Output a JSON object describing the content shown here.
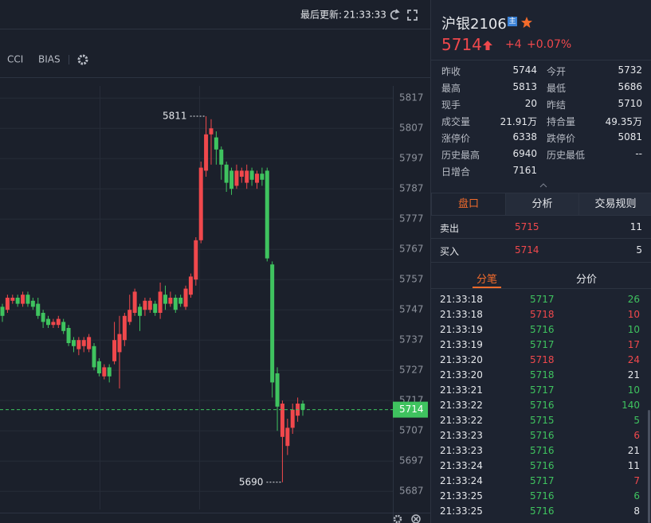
{
  "top_bar": {
    "update_label": "最后更新:",
    "update_time": "21:33:33"
  },
  "toolbar": {
    "indicators": [
      "CCI",
      "BIAS"
    ]
  },
  "chart_data": {
    "type": "candlestick",
    "open": [
      5748,
      5747,
      5750,
      5751,
      5749,
      5752,
      5750,
      5749,
      5746,
      5744,
      5742,
      5742,
      5743,
      5741,
      5737,
      5734,
      5735,
      5734,
      5735,
      5730,
      5725,
      5728,
      5730,
      5733,
      5737,
      5743,
      5746,
      5748,
      5747,
      5747,
      5749,
      5746,
      5752,
      5749,
      5751,
      5751,
      5748,
      5752,
      5757,
      5770,
      5793,
      5805,
      5804,
      5800,
      5795,
      5793,
      5788,
      5791,
      5789,
      5793,
      5789,
      5792,
      5793,
      5762,
      5726,
      5705,
      5702,
      5708,
      5712,
      5716
    ],
    "high": [
      5749,
      5752,
      5752,
      5752,
      5753,
      5753,
      5751,
      5751,
      5747,
      5745,
      5744,
      5745,
      5744,
      5742,
      5738,
      5738,
      5738,
      5739,
      5736,
      5731,
      5729,
      5729,
      5743,
      5745,
      5746,
      5752,
      5754,
      5749,
      5751,
      5751,
      5750,
      5756,
      5755,
      5753,
      5752,
      5752,
      5755,
      5759,
      5771,
      5796,
      5811,
      5810,
      5806,
      5801,
      5796,
      5794,
      5795,
      5794,
      5795,
      5794,
      5793,
      5794,
      5794,
      5763,
      5728,
      5717,
      5711,
      5716,
      5718,
      5717
    ],
    "low": [
      5743,
      5746,
      5749,
      5748,
      5748,
      5748,
      5747,
      5744,
      5741,
      5741,
      5741,
      5741,
      5739,
      5735,
      5733,
      5732,
      5733,
      5733,
      5727,
      5725,
      5724,
      5723,
      5729,
      5721,
      5735,
      5742,
      5745,
      5740,
      5745,
      5746,
      5745,
      5744,
      5747,
      5748,
      5746,
      5748,
      5747,
      5751,
      5755,
      5769,
      5791,
      5795,
      5795,
      5790,
      5786,
      5785,
      5787,
      5789,
      5787,
      5788,
      5787,
      5788,
      5763,
      5718,
      5707,
      5690,
      5699,
      5706,
      5710,
      5712
    ],
    "close": [
      5745,
      5751,
      5751,
      5749,
      5752,
      5749,
      5748,
      5745,
      5743,
      5742,
      5743,
      5744,
      5740,
      5736,
      5735,
      5737,
      5737,
      5738,
      5728,
      5726,
      5728,
      5725,
      5737,
      5739,
      5745,
      5747,
      5753,
      5745,
      5750,
      5750,
      5746,
      5753,
      5749,
      5751,
      5747,
      5749,
      5754,
      5758,
      5770,
      5794,
      5805,
      5807,
      5800,
      5795,
      5789,
      5787,
      5793,
      5793,
      5793,
      5790,
      5792,
      5790,
      5764,
      5723,
      5715,
      5716,
      5708,
      5714,
      5716,
      5714
    ],
    "up_color": "#f0484c",
    "down_color": "#3fc35f",
    "ylim": [
      5681,
      5821
    ],
    "yticks": [
      5817,
      5807,
      5797,
      5787,
      5777,
      5767,
      5757,
      5747,
      5737,
      5727,
      5717,
      5707,
      5697,
      5687
    ],
    "grid": true,
    "max_label": 5811,
    "min_label": 5690,
    "last_price": 5714
  },
  "quote": {
    "symbol": "沪银2106",
    "badge": "主",
    "price": 5714,
    "change": "+4",
    "change_pct": "+0.07%"
  },
  "stats": [
    [
      {
        "label": "昨收",
        "value": "5744"
      },
      {
        "label": "今开",
        "value": "5732"
      }
    ],
    [
      {
        "label": "最高",
        "value": "5813"
      },
      {
        "label": "最低",
        "value": "5686"
      }
    ],
    [
      {
        "label": "现手",
        "value": "20"
      },
      {
        "label": "昨结",
        "value": "5710"
      }
    ],
    [
      {
        "label": "成交量",
        "value": "21.91万"
      },
      {
        "label": "持合量",
        "value": "49.35万"
      }
    ],
    [
      {
        "label": "涨停价",
        "value": "6338"
      },
      {
        "label": "跌停价",
        "value": "5081"
      }
    ],
    [
      {
        "label": "历史最高",
        "value": "6940"
      },
      {
        "label": "历史最低",
        "value": "--"
      }
    ],
    [
      {
        "label": "日增合",
        "value": "7161"
      }
    ]
  ],
  "tabs": [
    "盘口",
    "分析",
    "交易规则"
  ],
  "order_book": [
    {
      "side": "卖出",
      "price": "5715",
      "volume": "11"
    },
    {
      "side": "买入",
      "price": "5714",
      "volume": "5"
    }
  ],
  "sub_tabs": [
    "分笔",
    "分价"
  ],
  "ticks": [
    {
      "time": "21:33:18",
      "price": "5717",
      "volume": "26",
      "price_color": "#3fc35f",
      "volume_color": "#3fc35f"
    },
    {
      "time": "21:33:18",
      "price": "5718",
      "volume": "10",
      "price_color": "#f0484c",
      "volume_color": "#f0484c"
    },
    {
      "time": "21:33:19",
      "price": "5716",
      "volume": "10",
      "price_color": "#3fc35f",
      "volume_color": "#3fc35f"
    },
    {
      "time": "21:33:19",
      "price": "5717",
      "volume": "17",
      "price_color": "#3fc35f",
      "volume_color": "#f0484c"
    },
    {
      "time": "21:33:20",
      "price": "5718",
      "volume": "24",
      "price_color": "#f0484c",
      "volume_color": "#f0484c"
    },
    {
      "time": "21:33:20",
      "price": "5718",
      "volume": "21",
      "price_color": "#3fc35f",
      "volume_color": "#e6e8ec"
    },
    {
      "time": "21:33:21",
      "price": "5717",
      "volume": "10",
      "price_color": "#3fc35f",
      "volume_color": "#3fc35f"
    },
    {
      "time": "21:33:22",
      "price": "5716",
      "volume": "140",
      "price_color": "#3fc35f",
      "volume_color": "#3fc35f"
    },
    {
      "time": "21:33:22",
      "price": "5715",
      "volume": "5",
      "price_color": "#3fc35f",
      "volume_color": "#3fc35f"
    },
    {
      "time": "21:33:23",
      "price": "5716",
      "volume": "6",
      "price_color": "#3fc35f",
      "volume_color": "#f0484c"
    },
    {
      "time": "21:33:23",
      "price": "5716",
      "volume": "21",
      "price_color": "#3fc35f",
      "volume_color": "#e6e8ec"
    },
    {
      "time": "21:33:24",
      "price": "5716",
      "volume": "11",
      "price_color": "#3fc35f",
      "volume_color": "#e6e8ec"
    },
    {
      "time": "21:33:24",
      "price": "5717",
      "volume": "7",
      "price_color": "#3fc35f",
      "volume_color": "#f0484c"
    },
    {
      "time": "21:33:25",
      "price": "5716",
      "volume": "6",
      "price_color": "#3fc35f",
      "volume_color": "#3fc35f"
    },
    {
      "time": "21:33:25",
      "price": "5716",
      "volume": "8",
      "price_color": "#3fc35f",
      "volume_color": "#e6e8ec"
    }
  ]
}
